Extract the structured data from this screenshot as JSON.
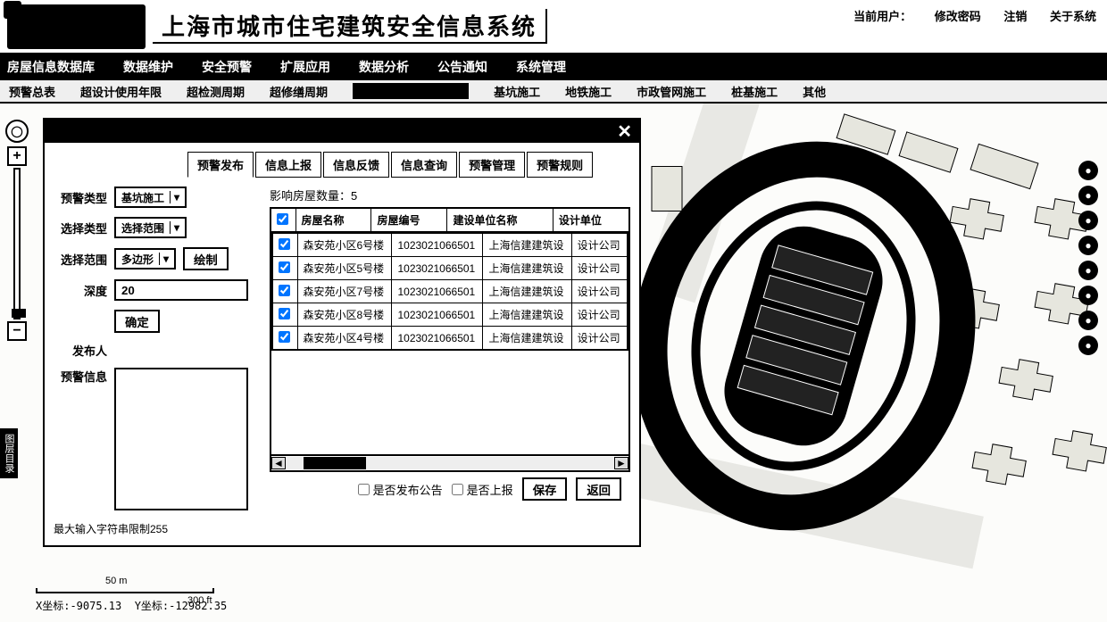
{
  "header": {
    "title": "上海市城市住宅建筑安全信息系统",
    "current_user_label": "当前用户：",
    "change_pwd": "修改密码",
    "logout": "注销",
    "about": "关于系统"
  },
  "nav1": [
    "房屋信息数据库",
    "数据维护",
    "安全预警",
    "扩展应用",
    "数据分析",
    "公告通知",
    "系统管理"
  ],
  "nav2": [
    "预警总表",
    "超设计使用年限",
    "超检测周期",
    "超修缮周期",
    "",
    "基坑施工",
    "地铁施工",
    "市政管网施工",
    "桩基施工",
    "其他"
  ],
  "dialog": {
    "tabs": [
      "预警发布",
      "信息上报",
      "信息反馈",
      "信息查询",
      "预警管理",
      "预警规则"
    ],
    "active_tab": 0,
    "form": {
      "type_label": "预警类型",
      "type_value": "基坑施工",
      "select_type_label": "选择类型",
      "select_type_value": "选择范围",
      "range_label": "选择范围",
      "range_value": "多边形",
      "draw_btn": "绘制",
      "depth_label": "深度",
      "depth_value": "20",
      "confirm_btn": "确定",
      "publisher_label": "发布人",
      "msg_label": "预警信息",
      "hint": "最大输入字符串限制255"
    },
    "count_label": "影响房屋数量：",
    "count_value": "5",
    "columns": [
      "",
      "房屋名称",
      "房屋编号",
      "建设单位名称",
      "设计单位"
    ],
    "rows": [
      {
        "checked": true,
        "name": "森安苑小区6号楼",
        "code": "1023021066501",
        "unit": "上海信建建筑设",
        "design": "设计公司"
      },
      {
        "checked": true,
        "name": "森安苑小区5号楼",
        "code": "1023021066501",
        "unit": "上海信建建筑设",
        "design": "设计公司"
      },
      {
        "checked": true,
        "name": "森安苑小区7号楼",
        "code": "1023021066501",
        "unit": "上海信建建筑设",
        "design": "设计公司"
      },
      {
        "checked": true,
        "name": "森安苑小区8号楼",
        "code": "1023021066501",
        "unit": "上海信建建筑设",
        "design": "设计公司"
      },
      {
        "checked": true,
        "name": "森安苑小区4号楼",
        "code": "1023021066501",
        "unit": "上海信建建筑设",
        "design": "设计公司"
      }
    ],
    "foot": {
      "publish_notice": "是否发布公告",
      "submit_report": "是否上报",
      "save": "保存",
      "back": "返回"
    }
  },
  "scale": {
    "m": "50 m",
    "ft": "300 ft"
  },
  "coords": {
    "x_label": "X坐标:",
    "x": "-9075.13",
    "y_label": "Y坐标:",
    "y": "-12982.35"
  },
  "left_tab_text": "图层目录",
  "colors": {
    "accent": "#000000",
    "bg": "#ffffff"
  }
}
